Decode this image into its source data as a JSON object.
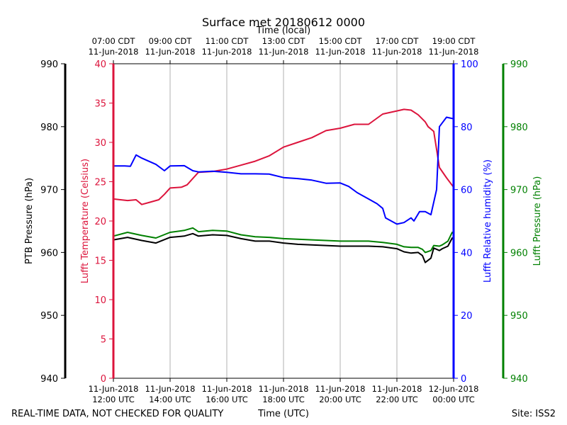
{
  "chart_data": {
    "type": "line",
    "title": "Surface met 20180612 0000",
    "top_axis_label": "Time (local)",
    "bottom_axis_label": "Time (UTC)",
    "footer_left": "REAL-TIME DATA, NOT CHECKED FOR QUALITY",
    "footer_right": "Site: ISS2",
    "x_range_hours": [
      12,
      24
    ],
    "x_ticks": [
      {
        "hour": 12,
        "utc_date": "11-Jun-2018",
        "utc_time": "12:00 UTC",
        "local_time": "07:00 CDT",
        "local_date": "11-Jun-2018"
      },
      {
        "hour": 14,
        "utc_date": "11-Jun-2018",
        "utc_time": "14:00 UTC",
        "local_time": "09:00 CDT",
        "local_date": "11-Jun-2018"
      },
      {
        "hour": 16,
        "utc_date": "11-Jun-2018",
        "utc_time": "16:00 UTC",
        "local_time": "11:00 CDT",
        "local_date": "11-Jun-2018"
      },
      {
        "hour": 18,
        "utc_date": "11-Jun-2018",
        "utc_time": "18:00 UTC",
        "local_time": "13:00 CDT",
        "local_date": "11-Jun-2018"
      },
      {
        "hour": 20,
        "utc_date": "11-Jun-2018",
        "utc_time": "20:00 UTC",
        "local_time": "15:00 CDT",
        "local_date": "11-Jun-2018"
      },
      {
        "hour": 22,
        "utc_date": "11-Jun-2018",
        "utc_time": "22:00 UTC",
        "local_time": "17:00 CDT",
        "local_date": "11-Jun-2018"
      },
      {
        "hour": 24,
        "utc_date": "12-Jun-2018",
        "utc_time": "00:00 UTC",
        "local_time": "19:00 CDT",
        "local_date": "11-Jun-2018"
      }
    ],
    "axes": {
      "ptb": {
        "label": "PTB Pressure (hPa)",
        "range": [
          940,
          990
        ],
        "ticks": [
          940,
          950,
          960,
          970,
          980,
          990
        ],
        "color": "#000000"
      },
      "temp": {
        "label": "Lufft Temperature (Celsius)",
        "range": [
          0,
          40
        ],
        "ticks": [
          0,
          5,
          10,
          15,
          20,
          25,
          30,
          35,
          40
        ],
        "color": "#dc143c"
      },
      "rh": {
        "label": "Lufft Relative humidity (%)",
        "range": [
          0,
          100
        ],
        "ticks": [
          0,
          20,
          40,
          60,
          80,
          100
        ],
        "color": "#0000ff"
      },
      "lufft_p": {
        "label": "Lufft Pressure (hPa)",
        "range": [
          940,
          990
        ],
        "ticks": [
          940,
          950,
          960,
          970,
          980,
          990
        ],
        "color": "#008000"
      }
    },
    "series": [
      {
        "name": "Lufft Temperature",
        "axis": "temp",
        "color": "#dc143c",
        "x": [
          12.0,
          12.5,
          12.8,
          13.0,
          13.3,
          13.6,
          13.8,
          14.0,
          14.4,
          14.6,
          15.0,
          15.5,
          16.0,
          16.5,
          17.0,
          17.5,
          18.0,
          18.5,
          19.0,
          19.5,
          20.0,
          20.5,
          21.0,
          21.5,
          22.0,
          22.25,
          22.5,
          22.75,
          23.0,
          23.1,
          23.3,
          23.5,
          23.75,
          24.0
        ],
        "values": [
          22.8,
          22.6,
          22.7,
          22.1,
          22.4,
          22.7,
          23.4,
          24.2,
          24.3,
          24.6,
          26.2,
          26.3,
          26.6,
          27.1,
          27.6,
          28.3,
          29.4,
          30.0,
          30.6,
          31.5,
          31.8,
          32.3,
          32.3,
          33.6,
          34.0,
          34.2,
          34.1,
          33.5,
          32.6,
          32.0,
          31.4,
          26.8,
          25.5,
          24.3
        ]
      },
      {
        "name": "Lufft Relative humidity",
        "axis": "rh",
        "color": "#0000ff",
        "x": [
          12.0,
          12.4,
          12.6,
          12.8,
          13.0,
          13.5,
          13.8,
          14.0,
          14.5,
          14.8,
          15.0,
          15.5,
          16.0,
          16.5,
          17.0,
          17.5,
          18.0,
          18.5,
          19.0,
          19.5,
          20.0,
          20.3,
          20.6,
          21.0,
          21.3,
          21.5,
          21.6,
          21.8,
          22.0,
          22.25,
          22.5,
          22.6,
          22.8,
          23.0,
          23.2,
          23.4,
          23.5,
          23.75,
          24.0
        ],
        "values": [
          67.5,
          67.5,
          67.4,
          71.0,
          70.0,
          68.0,
          66.0,
          67.5,
          67.6,
          66.0,
          65.6,
          65.8,
          65.5,
          65.0,
          65.0,
          64.9,
          63.8,
          63.5,
          63.0,
          62.0,
          62.1,
          61.0,
          59.0,
          57.0,
          55.5,
          54.0,
          51.0,
          50.0,
          49.0,
          49.5,
          51.0,
          50.0,
          53.0,
          53.0,
          52.0,
          60.0,
          80.0,
          83.0,
          82.5
        ]
      },
      {
        "name": "PTB Pressure",
        "axis": "ptb",
        "color": "#000000",
        "x": [
          12.0,
          12.5,
          13.0,
          13.5,
          14.0,
          14.5,
          14.8,
          15.0,
          15.5,
          16.0,
          16.5,
          17.0,
          17.5,
          18.0,
          18.5,
          19.0,
          19.5,
          20.0,
          21.0,
          21.5,
          22.0,
          22.25,
          22.5,
          22.75,
          22.9,
          23.0,
          23.2,
          23.3,
          23.5,
          23.6,
          23.8,
          23.95,
          24.0
        ],
        "values": [
          962.0,
          962.4,
          961.9,
          961.5,
          962.4,
          962.6,
          963.0,
          962.6,
          962.8,
          962.7,
          962.2,
          961.8,
          961.8,
          961.5,
          961.3,
          961.2,
          961.1,
          961.0,
          961.0,
          960.9,
          960.6,
          960.1,
          959.9,
          960.0,
          959.5,
          958.4,
          959.1,
          960.7,
          960.3,
          960.6,
          961.0,
          962.3,
          962.0
        ]
      },
      {
        "name": "Lufft Pressure",
        "axis": "lufft_p",
        "color": "#008000",
        "x": [
          12.0,
          12.5,
          13.0,
          13.5,
          14.0,
          14.5,
          14.8,
          15.0,
          15.5,
          16.0,
          16.5,
          17.0,
          17.5,
          18.0,
          18.5,
          19.0,
          19.5,
          20.0,
          21.0,
          21.5,
          22.0,
          22.25,
          22.5,
          22.75,
          22.9,
          23.0,
          23.2,
          23.3,
          23.5,
          23.6,
          23.8,
          23.95,
          24.0
        ],
        "values": [
          962.6,
          963.2,
          962.7,
          962.3,
          963.2,
          963.5,
          963.9,
          963.3,
          963.5,
          963.4,
          962.8,
          962.5,
          962.4,
          962.2,
          962.1,
          962.0,
          961.9,
          961.8,
          961.8,
          961.6,
          961.3,
          960.9,
          960.8,
          960.8,
          960.5,
          960.0,
          960.3,
          961.1,
          961.0,
          961.2,
          961.8,
          963.2,
          963.0
        ]
      }
    ]
  }
}
